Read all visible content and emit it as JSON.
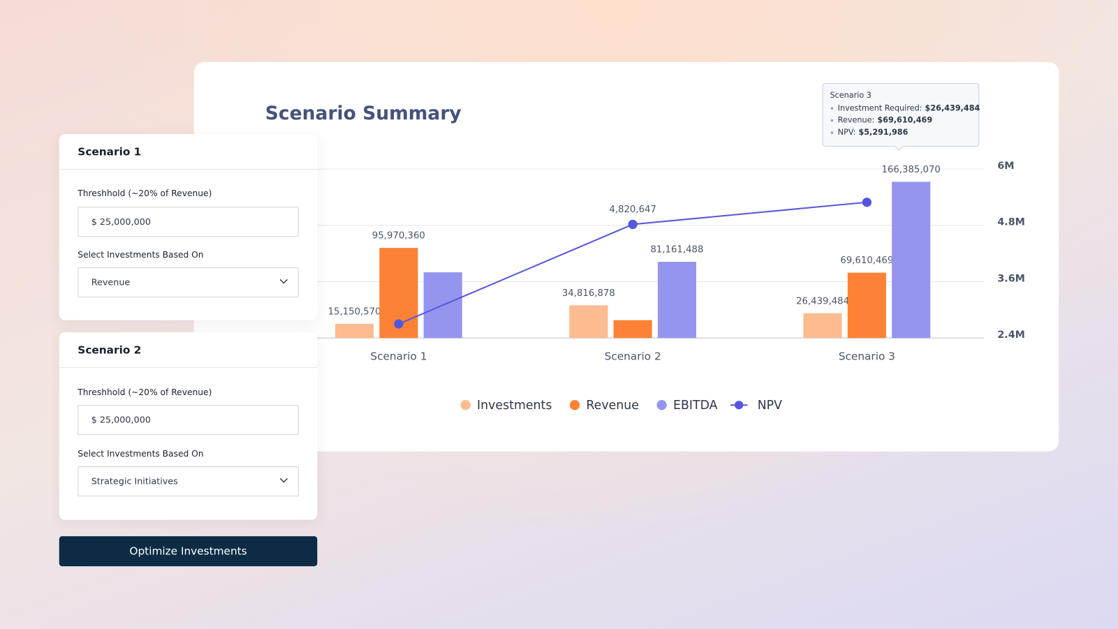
{
  "chart_data": {
    "type": "bar",
    "title": "Scenario Summary",
    "categories": [
      "Scenario 1",
      "Scenario 2",
      "Scenario 3"
    ],
    "series": [
      {
        "name": "Investments",
        "color": "#fdbb8f",
        "values": [
          15150570,
          34816878,
          26439484
        ],
        "value_labels": [
          "15,150,570",
          "34,816,878",
          "26,439,484"
        ]
      },
      {
        "name": "Revenue",
        "color": "#fd8236",
        "values": [
          95970360,
          19000000,
          69610469
        ],
        "value_labels": [
          "95,970,360",
          null,
          "69,610,469"
        ]
      },
      {
        "name": "EBITDA",
        "color": "#9595ef",
        "values": [
          70000000,
          81161488,
          166385070
        ],
        "value_labels": [
          null,
          "81,161,488",
          "166,385,070"
        ]
      },
      {
        "name": "NPV",
        "type": "line",
        "axis": "y2",
        "color": "#5656dc",
        "values": [
          2700000,
          4820647,
          5291986
        ],
        "value_labels": [
          null,
          "4,820,647",
          null
        ]
      }
    ],
    "ylim": [
      0,
      180000000
    ],
    "y2lim": [
      2400000,
      6000000
    ],
    "y2ticks": [
      {
        "value": 2400000,
        "label": "2.4M"
      },
      {
        "value": 3600000,
        "label": "3.6M"
      },
      {
        "value": 4800000,
        "label": "4.8M"
      },
      {
        "value": 6000000,
        "label": "6M"
      }
    ],
    "grid": true,
    "legend": "bottom",
    "tooltip": {
      "title": "Scenario 3",
      "items": [
        {
          "label": "Investment Required:",
          "value": "$26,439,484"
        },
        {
          "label": "Revenue:",
          "value": "$69,610,469"
        },
        {
          "label": "NPV:",
          "value": "$5,291,986"
        }
      ]
    }
  },
  "form": {
    "scenarios": [
      {
        "title": "Scenario 1",
        "threshold_label": "Threshhold (~20% of Revenue)",
        "threshold_value": "$ 25,000,000",
        "select_label": "Select Investments Based On",
        "select_value": "Revenue"
      },
      {
        "title": "Scenario 2",
        "threshold_label": "Threshhold (~20% of Revenue)",
        "threshold_value": "$ 25,000,000",
        "select_label": "Select Investments Based On",
        "select_value": "Strategic Initiatives"
      }
    ],
    "button": "Optimize Investments"
  }
}
